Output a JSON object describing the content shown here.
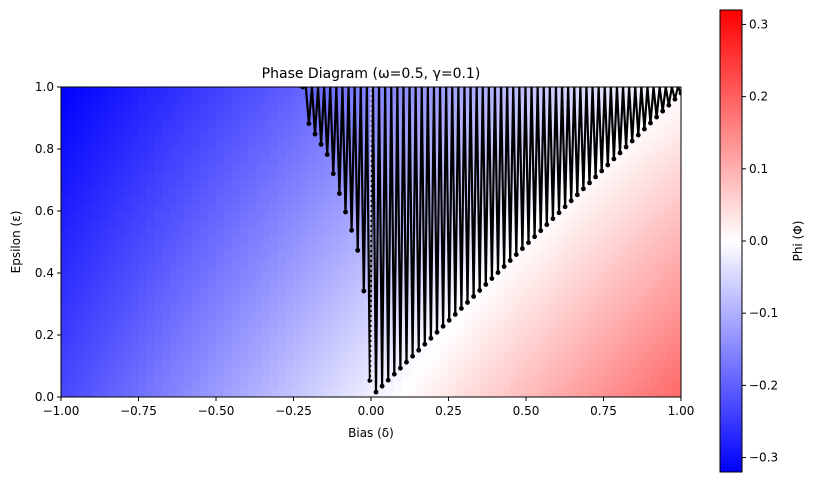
{
  "chart_data": {
    "type": "heatmap",
    "title": "Phase Diagram (ω=0.5, γ=0.1)",
    "xlabel": "Bias (δ)",
    "ylabel": "Epsilon (ε)",
    "xlim": [
      -1.0,
      1.0
    ],
    "ylim": [
      0.0,
      1.0
    ],
    "x_ticks": [
      "−1.00",
      "−0.75",
      "−0.50",
      "−0.25",
      "0.00",
      "0.25",
      "0.50",
      "0.75",
      "1.00"
    ],
    "y_ticks": [
      "0.0",
      "0.2",
      "0.4",
      "0.6",
      "0.8",
      "1.0"
    ],
    "grid": false,
    "colormap": "bwr",
    "colorbar": {
      "label": "Phi (Φ)",
      "range": [
        -0.32,
        0.32
      ],
      "ticks": [
        "0.3",
        "0.2",
        "0.1",
        "0.0",
        "−0.1",
        "−0.2",
        "−0.3"
      ]
    },
    "field_corners": {
      "top_left": -0.32,
      "bottom_left": -0.23,
      "bottom_right": 0.19,
      "top_right": 0.0
    },
    "zero_contour": {
      "from": [
        0.0,
        0.0
      ],
      "to": [
        1.0,
        1.0
      ]
    },
    "dashed_line_x": 0.0,
    "trajectory": {
      "color": "#000000",
      "left_boundary": [
        [
          -0.22,
          1.0
        ],
        [
          -0.2,
          0.88
        ],
        [
          -0.14,
          0.78
        ],
        [
          -0.1,
          0.65
        ],
        [
          -0.06,
          0.53
        ],
        [
          -0.03,
          0.43
        ],
        [
          -0.02,
          0.3
        ],
        [
          0.0,
          0.0
        ]
      ],
      "right_boundary": [
        [
          0.0,
          0.0
        ],
        [
          1.0,
          0.98
        ]
      ],
      "num_oscillations": 62
    }
  }
}
